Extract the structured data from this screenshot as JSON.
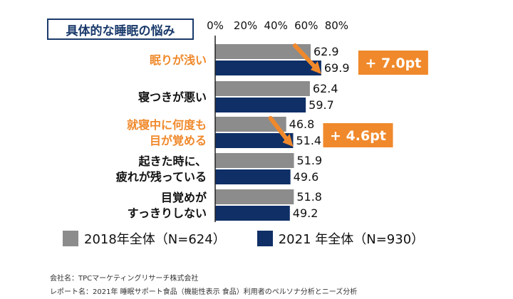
{
  "chart_data": {
    "type": "bar",
    "orientation": "horizontal",
    "title": "具体的な睡眠の悩み",
    "xticks": [
      "0%",
      "20%",
      "40%",
      "60%",
      "80%"
    ],
    "xlim": [
      0,
      80
    ],
    "categories": [
      {
        "lines": [
          "眠りが浅い"
        ],
        "highlight": true
      },
      {
        "lines": [
          "寝つきが悪い"
        ],
        "highlight": false
      },
      {
        "lines": [
          "就寝中に何度も",
          "目が覚める"
        ],
        "highlight": true
      },
      {
        "lines": [
          "起きた時に、",
          "疲れが残っている"
        ],
        "highlight": false
      },
      {
        "lines": [
          "目覚めが",
          "すっきりしない"
        ],
        "highlight": false
      }
    ],
    "series": [
      {
        "name": "2018年全体（N=624）",
        "color": "#8c8c8c",
        "values": [
          62.9,
          62.4,
          46.8,
          51.9,
          51.8
        ]
      },
      {
        "name": "2021 年全体（N=930）",
        "color": "#0f2f66",
        "values": [
          69.9,
          59.7,
          51.4,
          49.6,
          49.2
        ]
      }
    ],
    "value_labels": [
      [
        "62.9",
        "62.4",
        "46.8",
        "51.9",
        "51.8"
      ],
      [
        "69.9",
        "59.7",
        "51.4",
        "49.6",
        "49.2"
      ]
    ],
    "annotations": [
      {
        "category_index": 0,
        "text": "+ 7.0pt"
      },
      {
        "category_index": 2,
        "text": "+ 4.6pt"
      }
    ],
    "colors": {
      "highlight": "#f0892b",
      "title": "#1a3a6b"
    }
  },
  "legend": {
    "s2018": "2018年全体（N=624）",
    "s2021": "2021 年全体（N=930）"
  },
  "footer": {
    "line1": "会社名：TPCマーケティングリサーチ株式会社",
    "line2": "レポート名：2021年 睡眠サポート食品（機能性表示 食品）利用者のペルソナ分析とニーズ分析"
  }
}
